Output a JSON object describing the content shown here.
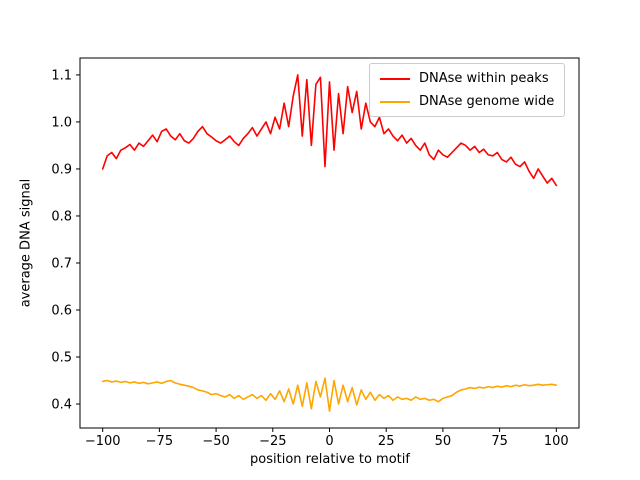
{
  "figure": {
    "background": "#ffffff",
    "plot_border_color": "#000000"
  },
  "legend": {
    "position": "upper right",
    "entries": [
      {
        "label": "DNAse within peaks",
        "color": "#ff0000"
      },
      {
        "label": "DNAse genome wide",
        "color": "#ffa500"
      }
    ]
  },
  "chart_data": {
    "type": "line",
    "title": "",
    "xlabel": "position relative to motif",
    "ylabel": "average DNA signal",
    "xlim": [
      -110,
      110
    ],
    "ylim": [
      0.349,
      1.136
    ],
    "xticks": [
      -100,
      -75,
      -50,
      -25,
      0,
      25,
      50,
      75,
      100
    ],
    "yticks": [
      0.4,
      0.5,
      0.6,
      0.7,
      0.8,
      0.9,
      1.0,
      1.1
    ],
    "grid": false,
    "legend_position": "upper right",
    "x": [
      -100,
      -98,
      -96,
      -94,
      -92,
      -90,
      -88,
      -86,
      -84,
      -82,
      -80,
      -78,
      -76,
      -74,
      -72,
      -70,
      -68,
      -66,
      -64,
      -62,
      -60,
      -58,
      -56,
      -54,
      -52,
      -50,
      -48,
      -46,
      -44,
      -42,
      -40,
      -38,
      -36,
      -34,
      -32,
      -30,
      -28,
      -26,
      -24,
      -22,
      -20,
      -18,
      -16,
      -14,
      -12,
      -10,
      -8,
      -6,
      -4,
      -2,
      0,
      2,
      4,
      6,
      8,
      10,
      12,
      14,
      16,
      18,
      20,
      22,
      24,
      26,
      28,
      30,
      32,
      34,
      36,
      38,
      40,
      42,
      44,
      46,
      48,
      50,
      52,
      54,
      56,
      58,
      60,
      62,
      64,
      66,
      68,
      70,
      72,
      74,
      76,
      78,
      80,
      82,
      84,
      86,
      88,
      90,
      92,
      94,
      96,
      98,
      100
    ],
    "series": [
      {
        "name": "DNAse within peaks",
        "color": "#ff0000",
        "values": [
          0.9,
          0.928,
          0.935,
          0.922,
          0.94,
          0.945,
          0.952,
          0.94,
          0.955,
          0.948,
          0.96,
          0.972,
          0.958,
          0.98,
          0.985,
          0.97,
          0.962,
          0.975,
          0.96,
          0.955,
          0.965,
          0.98,
          0.99,
          0.975,
          0.968,
          0.96,
          0.955,
          0.962,
          0.97,
          0.958,
          0.95,
          0.965,
          0.975,
          0.988,
          0.97,
          0.985,
          1.0,
          0.975,
          1.01,
          0.985,
          1.04,
          0.99,
          1.055,
          1.1,
          0.97,
          1.09,
          0.95,
          1.08,
          1.095,
          0.905,
          1.085,
          0.94,
          1.06,
          0.975,
          1.075,
          1.02,
          1.065,
          0.985,
          1.04,
          1.0,
          0.99,
          1.01,
          0.975,
          0.985,
          0.97,
          0.96,
          0.972,
          0.955,
          0.965,
          0.95,
          0.94,
          0.955,
          0.93,
          0.92,
          0.94,
          0.93,
          0.925,
          0.935,
          0.945,
          0.955,
          0.95,
          0.94,
          0.948,
          0.935,
          0.942,
          0.93,
          0.928,
          0.935,
          0.92,
          0.915,
          0.925,
          0.91,
          0.905,
          0.915,
          0.895,
          0.88,
          0.9,
          0.885,
          0.87,
          0.88,
          0.865
        ]
      },
      {
        "name": "DNAse genome wide",
        "color": "#ffa500",
        "values": [
          0.448,
          0.45,
          0.447,
          0.449,
          0.446,
          0.448,
          0.445,
          0.447,
          0.444,
          0.446,
          0.443,
          0.445,
          0.447,
          0.444,
          0.448,
          0.45,
          0.445,
          0.442,
          0.44,
          0.438,
          0.435,
          0.43,
          0.428,
          0.425,
          0.42,
          0.422,
          0.418,
          0.415,
          0.42,
          0.412,
          0.418,
          0.41,
          0.415,
          0.42,
          0.412,
          0.418,
          0.408,
          0.422,
          0.41,
          0.428,
          0.405,
          0.432,
          0.4,
          0.44,
          0.395,
          0.445,
          0.39,
          0.448,
          0.415,
          0.455,
          0.385,
          0.45,
          0.4,
          0.44,
          0.405,
          0.435,
          0.398,
          0.43,
          0.41,
          0.425,
          0.408,
          0.42,
          0.412,
          0.418,
          0.408,
          0.415,
          0.41,
          0.412,
          0.408,
          0.415,
          0.41,
          0.412,
          0.408,
          0.41,
          0.405,
          0.412,
          0.415,
          0.418,
          0.425,
          0.43,
          0.432,
          0.435,
          0.433,
          0.436,
          0.434,
          0.437,
          0.435,
          0.438,
          0.436,
          0.439,
          0.437,
          0.44,
          0.438,
          0.441,
          0.439,
          0.44,
          0.442,
          0.44,
          0.441,
          0.442,
          0.44
        ]
      }
    ]
  }
}
